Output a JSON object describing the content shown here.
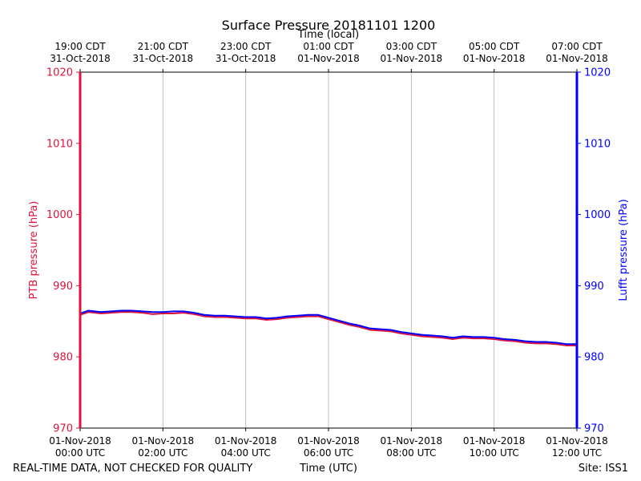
{
  "chart_data": {
    "type": "line",
    "title": "Surface Pressure 20181101 1200",
    "xlabel": "Time (UTC)",
    "x2label": "Time (local)",
    "ylabel": "PTB pressure (hPa)",
    "y2label": "Lufft pressure (hPa)",
    "ylim": [
      970,
      1020
    ],
    "y2lim": [
      970,
      1020
    ],
    "xlim_hours": [
      0,
      12
    ],
    "yticks": [
      970,
      980,
      990,
      1000,
      1010,
      1020
    ],
    "y2ticks": [
      970,
      980,
      990,
      1000,
      1010,
      1020
    ],
    "grid": "vertical",
    "xticks_utc": [
      {
        "hour": 0,
        "date": "01-Nov-2018",
        "time": "00:00 UTC"
      },
      {
        "hour": 2,
        "date": "01-Nov-2018",
        "time": "02:00 UTC"
      },
      {
        "hour": 4,
        "date": "01-Nov-2018",
        "time": "04:00 UTC"
      },
      {
        "hour": 6,
        "date": "01-Nov-2018",
        "time": "06:00 UTC"
      },
      {
        "hour": 8,
        "date": "01-Nov-2018",
        "time": "08:00 UTC"
      },
      {
        "hour": 10,
        "date": "01-Nov-2018",
        "time": "10:00 UTC"
      },
      {
        "hour": 12,
        "date": "01-Nov-2018",
        "time": "12:00 UTC"
      }
    ],
    "xticks_local": [
      {
        "hour": 0,
        "time": "19:00 CDT",
        "date": "31-Oct-2018"
      },
      {
        "hour": 2,
        "time": "21:00 CDT",
        "date": "31-Oct-2018"
      },
      {
        "hour": 4,
        "time": "23:00 CDT",
        "date": "31-Oct-2018"
      },
      {
        "hour": 6,
        "time": "01:00 CDT",
        "date": "01-Nov-2018"
      },
      {
        "hour": 8,
        "time": "03:00 CDT",
        "date": "01-Nov-2018"
      },
      {
        "hour": 10,
        "time": "05:00 CDT",
        "date": "01-Nov-2018"
      },
      {
        "hour": 12,
        "time": "07:00 CDT",
        "date": "01-Nov-2018"
      }
    ],
    "series": [
      {
        "name": "PTB pressure",
        "axis": "left",
        "color": "#dc143c",
        "x": [
          0.0,
          0.05,
          0.2,
          0.5,
          0.75,
          1.0,
          1.25,
          1.5,
          1.75,
          2.0,
          2.25,
          2.5,
          2.75,
          3.0,
          3.25,
          3.5,
          3.75,
          4.0,
          4.25,
          4.5,
          4.75,
          5.0,
          5.25,
          5.5,
          5.75,
          6.0,
          6.25,
          6.5,
          6.75,
          7.0,
          7.25,
          7.5,
          7.75,
          8.0,
          8.25,
          8.5,
          8.75,
          9.0,
          9.25,
          9.5,
          9.75,
          10.0,
          10.25,
          10.5,
          10.75,
          11.0,
          11.25,
          11.5,
          11.75,
          12.0
        ],
        "values": [
          985.9,
          986.0,
          986.3,
          986.1,
          986.2,
          986.3,
          986.3,
          986.2,
          986.0,
          986.1,
          986.1,
          986.2,
          986.0,
          985.7,
          985.6,
          985.6,
          985.5,
          985.4,
          985.4,
          985.2,
          985.3,
          985.5,
          985.6,
          985.7,
          985.7,
          985.3,
          984.9,
          984.5,
          984.2,
          983.8,
          983.7,
          983.6,
          983.3,
          983.1,
          982.9,
          982.8,
          982.7,
          982.5,
          982.7,
          982.6,
          982.6,
          982.5,
          982.3,
          982.2,
          982.0,
          981.9,
          981.9,
          981.8,
          981.6,
          981.6
        ]
      },
      {
        "name": "Lufft pressure",
        "axis": "right",
        "color": "#0000ff",
        "x": [
          0.0,
          0.05,
          0.2,
          0.5,
          0.75,
          1.0,
          1.25,
          1.5,
          1.75,
          2.0,
          2.25,
          2.5,
          2.75,
          3.0,
          3.25,
          3.5,
          3.75,
          4.0,
          4.25,
          4.5,
          4.75,
          5.0,
          5.25,
          5.5,
          5.75,
          6.0,
          6.25,
          6.5,
          6.75,
          7.0,
          7.25,
          7.5,
          7.75,
          8.0,
          8.25,
          8.5,
          8.75,
          9.0,
          9.25,
          9.5,
          9.75,
          10.0,
          10.25,
          10.5,
          10.75,
          11.0,
          11.25,
          11.5,
          11.75,
          12.0
        ],
        "values": [
          986.1,
          986.2,
          986.5,
          986.3,
          986.4,
          986.5,
          986.5,
          986.4,
          986.3,
          986.3,
          986.4,
          986.4,
          986.2,
          985.9,
          985.8,
          985.8,
          985.7,
          985.6,
          985.6,
          985.4,
          985.5,
          985.7,
          985.8,
          985.9,
          985.9,
          985.5,
          985.1,
          984.7,
          984.4,
          984.0,
          983.9,
          983.8,
          983.5,
          983.3,
          983.1,
          983.0,
          982.9,
          982.7,
          982.9,
          982.8,
          982.8,
          982.7,
          982.5,
          982.4,
          982.2,
          982.1,
          982.1,
          982.0,
          981.8,
          981.8
        ]
      }
    ]
  },
  "footer": {
    "left": "REAL-TIME DATA, NOT CHECKED FOR QUALITY",
    "right": "Site: ISS1"
  }
}
